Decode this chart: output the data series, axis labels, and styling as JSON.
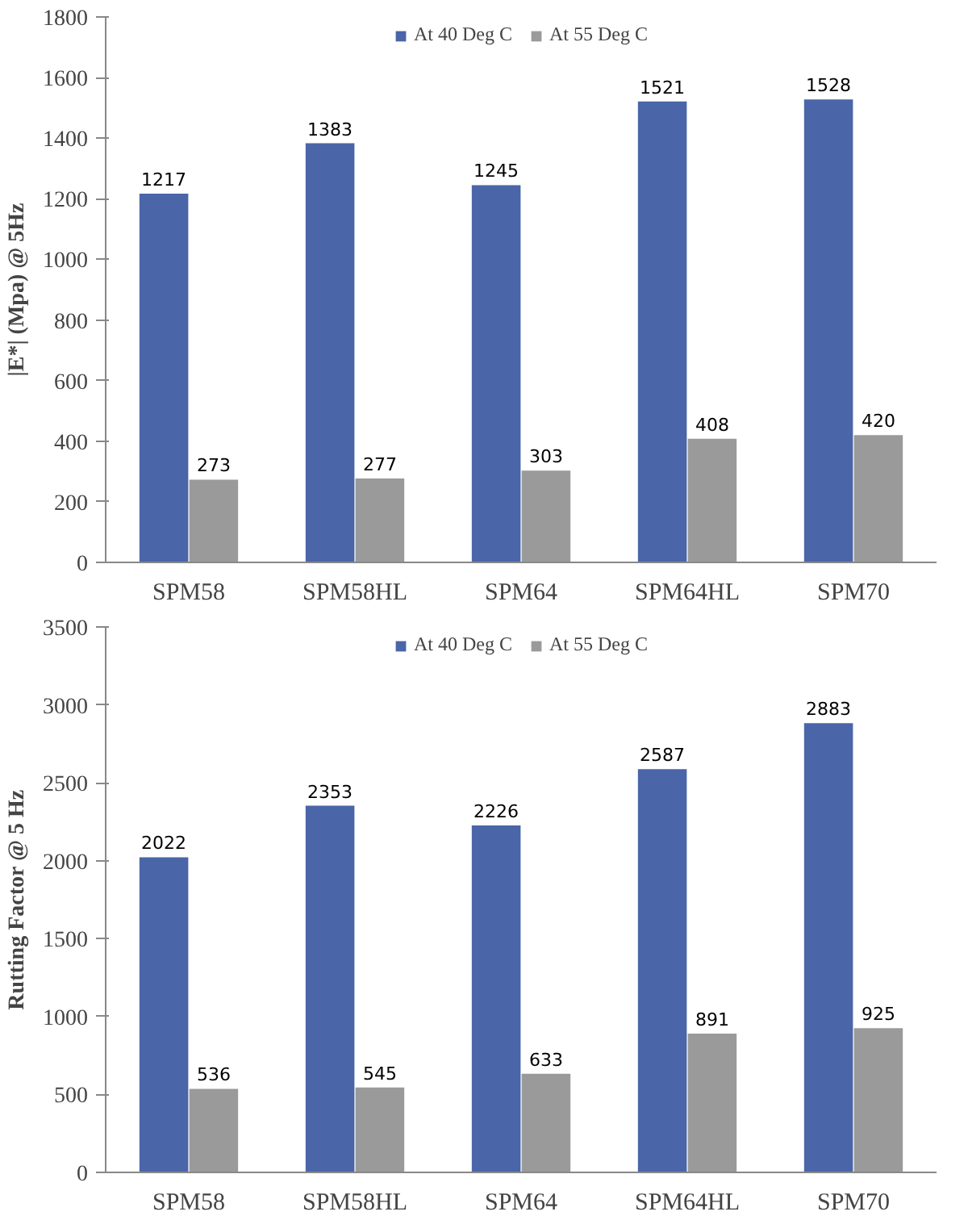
{
  "chart_data": [
    {
      "type": "bar",
      "ylabel": "|E*| (Mpa) @ 5Hz",
      "categories": [
        "SPM58",
        "SPM58HL",
        "SPM64",
        "SPM64HL",
        "SPM70"
      ],
      "series": [
        {
          "name": "At 40 Deg C",
          "color": "#4a65a8",
          "values": [
            1217,
            1383,
            1245,
            1521,
            1528
          ]
        },
        {
          "name": "At 55 Deg C",
          "color": "#9a9a9a",
          "values": [
            273,
            277,
            303,
            408,
            420
          ]
        }
      ],
      "ylim": [
        0,
        1800
      ],
      "yticks": [
        0,
        200,
        400,
        600,
        800,
        1000,
        1200,
        1400,
        1600,
        1800
      ],
      "grid": false,
      "legend": "top",
      "data_labels": true
    },
    {
      "type": "bar",
      "ylabel": "Rutting Factor @ 5 Hz",
      "categories": [
        "SPM58",
        "SPM58HL",
        "SPM64",
        "SPM64HL",
        "SPM70"
      ],
      "series": [
        {
          "name": "At 40 Deg C",
          "color": "#4a65a8",
          "values": [
            2022,
            2353,
            2226,
            2587,
            2883
          ]
        },
        {
          "name": "At 55 Deg C",
          "color": "#9a9a9a",
          "values": [
            536,
            545,
            633,
            891,
            925
          ]
        }
      ],
      "ylim": [
        0,
        3500
      ],
      "yticks": [
        0,
        500,
        1000,
        1500,
        2000,
        2500,
        3000,
        3500
      ],
      "grid": false,
      "legend": "top",
      "data_labels": true
    }
  ]
}
